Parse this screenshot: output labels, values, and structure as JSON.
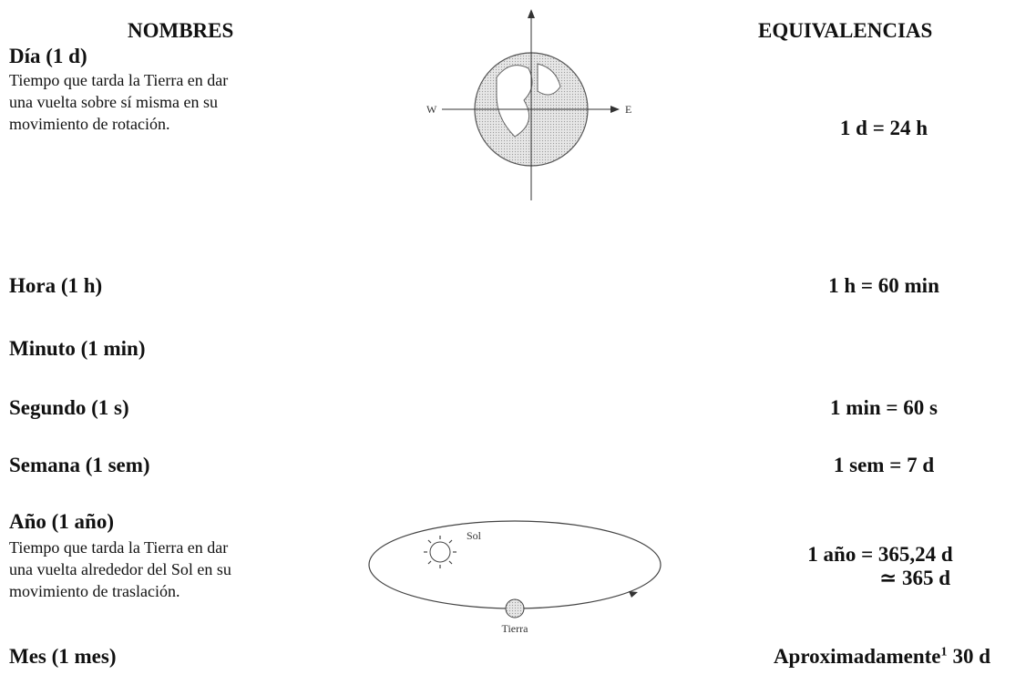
{
  "header": {
    "names": "NOMBRES",
    "equivalences": "EQUIVALENCIAS"
  },
  "items": [
    {
      "name": "Día (1 d)",
      "description": [
        "Tiempo que tarda la Tierra en dar",
        "una vuelta sobre sí misma en su",
        "movimiento de rotación."
      ]
    },
    {
      "name": "Hora (1 h)"
    },
    {
      "name": "Minuto (1 min)"
    },
    {
      "name": "Segundo (1 s)"
    },
    {
      "name": "Semana (1 sem)"
    },
    {
      "name": "Año (1 año)",
      "description": [
        "Tiempo que tarda la Tierra en dar",
        "una vuelta alrededor del Sol en su",
        "movimiento de traslación."
      ]
    },
    {
      "name": "Mes (1 mes)"
    }
  ],
  "equivalences": [
    "1 d = 24 h",
    "1 h = 60 min",
    "1 min = 60 s",
    "1 sem = 7 d",
    [
      "1 año = 365,24 d",
      "≃ 365 d"
    ],
    {
      "text": "Aproximadamente",
      "sup": "1",
      "rest": "30 d"
    }
  ],
  "diagrams": {
    "rotation": {
      "west": "W",
      "east": "E"
    },
    "translation": {
      "sun": "Sol",
      "earth": "Tierra"
    }
  }
}
